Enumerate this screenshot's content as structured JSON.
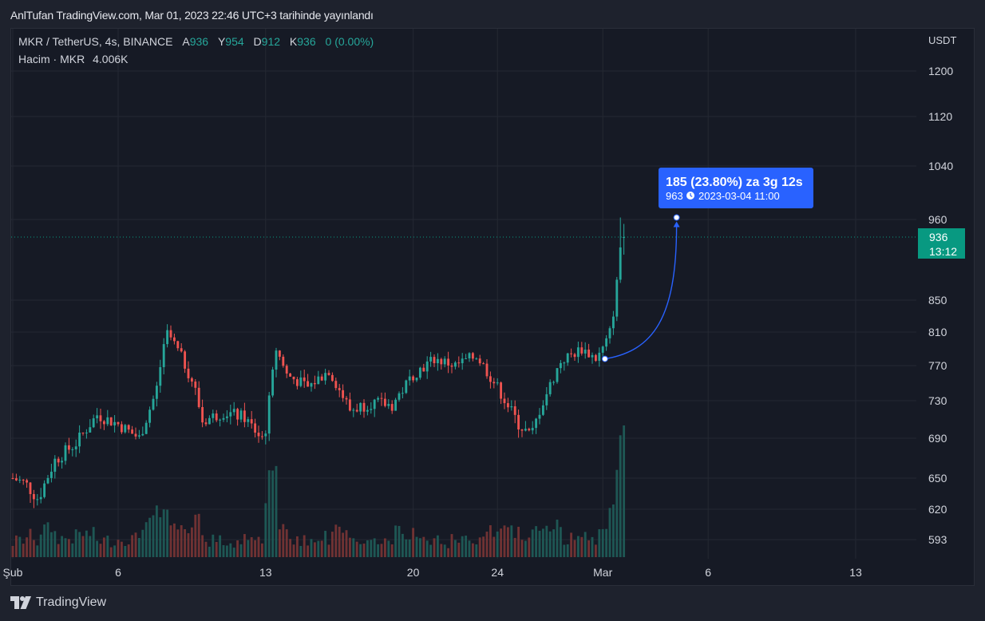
{
  "header": {
    "published": "AnlTufan TradingView.com, Mar 01, 2023 22:46 UTC+3 tarihinde yayınlandı"
  },
  "legend": {
    "symbol": "MKR / TetherUS, 4s, BINANCE",
    "open_label": "A",
    "open": "936",
    "high_label": "Y",
    "high": "954",
    "low_label": "D",
    "low": "912",
    "close_label": "K",
    "close": "936",
    "change": "0 (0.00%)",
    "volume_label": "Hacim · MKR",
    "volume": "4.006K"
  },
  "price_axis": {
    "currency": "USDT"
  },
  "last_price": {
    "price": "936",
    "countdown": "13:12"
  },
  "measure": {
    "line1": "185 (23.80%) za 3g 12s",
    "line2_price": "963",
    "line2_date": "2023-03-04  11:00"
  },
  "branding": {
    "name": "TradingView"
  },
  "colors": {
    "up": "#26a69a",
    "down": "#ef5350",
    "measure": "#2962ff",
    "last_price": "#089981"
  },
  "chart_data": {
    "type": "candlestick",
    "symbol": "MKR / TetherUS",
    "interval": "4s",
    "exchange": "BINANCE",
    "y_ticks": [
      1200,
      1120,
      1040,
      960,
      850,
      810,
      770,
      730,
      690,
      650,
      620,
      593
    ],
    "x_ticks": [
      {
        "label": "Şub",
        "day": 1
      },
      {
        "label": "6",
        "day": 6
      },
      {
        "label": "13",
        "day": 13
      },
      {
        "label": "20",
        "day": 20
      },
      {
        "label": "24",
        "day": 24
      },
      {
        "label": "Mar",
        "day": 29
      },
      {
        "label": "6",
        "day": 34
      },
      {
        "label": "13",
        "day": 41
      }
    ],
    "price_anchors": [
      {
        "day": 1.0,
        "price": 650
      },
      {
        "day": 1.6,
        "price": 645
      },
      {
        "day": 2.2,
        "price": 630
      },
      {
        "day": 3.0,
        "price": 668
      },
      {
        "day": 4.0,
        "price": 685
      },
      {
        "day": 5.0,
        "price": 715
      },
      {
        "day": 6.0,
        "price": 705
      },
      {
        "day": 7.0,
        "price": 690
      },
      {
        "day": 7.8,
        "price": 740
      },
      {
        "day": 8.3,
        "price": 812
      },
      {
        "day": 9.0,
        "price": 780
      },
      {
        "day": 9.6,
        "price": 748
      },
      {
        "day": 10.0,
        "price": 708
      },
      {
        "day": 11.0,
        "price": 718
      },
      {
        "day": 12.0,
        "price": 712
      },
      {
        "day": 12.8,
        "price": 690
      },
      {
        "day": 13.0,
        "price": 700
      },
      {
        "day": 13.5,
        "price": 790
      },
      {
        "day": 14.0,
        "price": 760
      },
      {
        "day": 15.0,
        "price": 745
      },
      {
        "day": 16.0,
        "price": 765
      },
      {
        "day": 17.0,
        "price": 720
      },
      {
        "day": 18.0,
        "price": 728
      },
      {
        "day": 19.0,
        "price": 725
      },
      {
        "day": 20.0,
        "price": 760
      },
      {
        "day": 21.0,
        "price": 778
      },
      {
        "day": 22.0,
        "price": 770
      },
      {
        "day": 23.0,
        "price": 782
      },
      {
        "day": 24.0,
        "price": 745
      },
      {
        "day": 25.0,
        "price": 705
      },
      {
        "day": 25.6,
        "price": 692
      },
      {
        "day": 26.0,
        "price": 720
      },
      {
        "day": 27.0,
        "price": 775
      },
      {
        "day": 28.0,
        "price": 790
      },
      {
        "day": 28.7,
        "price": 778
      },
      {
        "day": 29.0,
        "price": 790
      },
      {
        "day": 29.3,
        "price": 805
      },
      {
        "day": 29.6,
        "price": 850
      },
      {
        "day": 29.8,
        "price": 920
      },
      {
        "day": 30.0,
        "price": 936
      }
    ],
    "last": {
      "open": 936,
      "high": 954,
      "low": 912,
      "close": 936,
      "volume": "4.006K"
    },
    "peak_high": 963,
    "measure": {
      "from_price": 778,
      "to_price": 963,
      "change": 185,
      "change_pct": 23.8,
      "target_time": "2023-03-04 11:00",
      "duration": "3g 12s"
    }
  }
}
